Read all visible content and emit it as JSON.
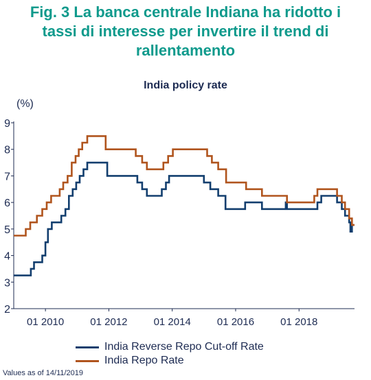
{
  "figure": {
    "title_lines": [
      "Fig. 3 La banca centrale Indiana ha ridotto i",
      "tassi di interesse per invertire il trend di",
      "rallentamento"
    ],
    "footnote": "Values as of 14/11/2019"
  },
  "colors": {
    "title": "#0f9a8c",
    "text": "#1d2b52",
    "series1": "#123e6e",
    "series2": "#b0541d",
    "axis": "#1d2b52"
  },
  "chart_data": {
    "type": "line",
    "title": "India policy rate",
    "ylabel": "(%)",
    "xlabel": "",
    "ylim": [
      2,
      9
    ],
    "yticks": [
      2,
      3,
      4,
      5,
      6,
      7,
      8,
      9
    ],
    "xlim": [
      2009.0,
      2019.75
    ],
    "xticks": [
      {
        "x": 2010.0,
        "label": "01 2010"
      },
      {
        "x": 2012.0,
        "label": "01 2012"
      },
      {
        "x": 2014.0,
        "label": "01 2014"
      },
      {
        "x": 2016.0,
        "label": "01 2016"
      },
      {
        "x": 2018.0,
        "label": "01 2018"
      }
    ],
    "grid": false,
    "legend_position": "bottom",
    "series": [
      {
        "name": "India Reverse Repo Cut-off Rate",
        "step": true,
        "points": [
          [
            2009.0,
            3.25
          ],
          [
            2009.54,
            3.5
          ],
          [
            2009.64,
            3.75
          ],
          [
            2009.9,
            4.0
          ],
          [
            2010.0,
            4.5
          ],
          [
            2010.08,
            5.0
          ],
          [
            2010.2,
            5.25
          ],
          [
            2010.5,
            5.5
          ],
          [
            2010.63,
            5.75
          ],
          [
            2010.74,
            6.25
          ],
          [
            2010.86,
            6.5
          ],
          [
            2010.97,
            6.75
          ],
          [
            2011.08,
            7.0
          ],
          [
            2011.2,
            7.25
          ],
          [
            2011.32,
            7.5
          ],
          [
            2011.9,
            7.5
          ],
          [
            2011.95,
            7.0
          ],
          [
            2012.8,
            7.0
          ],
          [
            2012.9,
            6.75
          ],
          [
            2013.05,
            6.5
          ],
          [
            2013.2,
            6.25
          ],
          [
            2013.57,
            6.25
          ],
          [
            2013.67,
            6.5
          ],
          [
            2013.8,
            6.75
          ],
          [
            2013.9,
            7.0
          ],
          [
            2014.9,
            7.0
          ],
          [
            2015.0,
            6.75
          ],
          [
            2015.2,
            6.5
          ],
          [
            2015.45,
            6.25
          ],
          [
            2015.68,
            5.75
          ],
          [
            2016.25,
            5.75
          ],
          [
            2016.3,
            6.0
          ],
          [
            2016.78,
            6.0
          ],
          [
            2016.83,
            5.75
          ],
          [
            2017.3,
            5.75
          ],
          [
            2017.58,
            6.0
          ],
          [
            2017.62,
            5.75
          ],
          [
            2018.5,
            5.75
          ],
          [
            2018.58,
            6.0
          ],
          [
            2018.7,
            6.25
          ],
          [
            2019.1,
            6.25
          ],
          [
            2019.2,
            6.0
          ],
          [
            2019.35,
            5.75
          ],
          [
            2019.45,
            5.5
          ],
          [
            2019.58,
            5.25
          ],
          [
            2019.62,
            4.9
          ],
          [
            2019.67,
            5.15
          ],
          [
            2019.75,
            5.15
          ]
        ]
      },
      {
        "name": "India Repo Rate",
        "step": true,
        "points": [
          [
            2009.0,
            4.75
          ],
          [
            2009.38,
            5.0
          ],
          [
            2009.52,
            5.25
          ],
          [
            2009.73,
            5.5
          ],
          [
            2009.9,
            5.75
          ],
          [
            2010.04,
            6.0
          ],
          [
            2010.18,
            6.25
          ],
          [
            2010.45,
            6.5
          ],
          [
            2010.56,
            6.75
          ],
          [
            2010.7,
            7.0
          ],
          [
            2010.83,
            7.5
          ],
          [
            2010.95,
            7.75
          ],
          [
            2011.05,
            8.0
          ],
          [
            2011.16,
            8.25
          ],
          [
            2011.32,
            8.5
          ],
          [
            2011.87,
            8.5
          ],
          [
            2011.9,
            8.0
          ],
          [
            2012.75,
            8.0
          ],
          [
            2012.85,
            7.75
          ],
          [
            2013.05,
            7.5
          ],
          [
            2013.2,
            7.25
          ],
          [
            2013.6,
            7.25
          ],
          [
            2013.72,
            7.5
          ],
          [
            2013.87,
            7.75
          ],
          [
            2014.02,
            8.0
          ],
          [
            2014.98,
            8.0
          ],
          [
            2015.1,
            7.75
          ],
          [
            2015.25,
            7.5
          ],
          [
            2015.45,
            7.25
          ],
          [
            2015.7,
            6.75
          ],
          [
            2016.28,
            6.75
          ],
          [
            2016.33,
            6.5
          ],
          [
            2016.78,
            6.5
          ],
          [
            2016.83,
            6.25
          ],
          [
            2017.58,
            6.25
          ],
          [
            2017.62,
            6.0
          ],
          [
            2018.42,
            6.0
          ],
          [
            2018.48,
            6.25
          ],
          [
            2018.58,
            6.5
          ],
          [
            2019.1,
            6.5
          ],
          [
            2019.2,
            6.25
          ],
          [
            2019.35,
            6.0
          ],
          [
            2019.45,
            5.75
          ],
          [
            2019.58,
            5.4
          ],
          [
            2019.67,
            5.15
          ],
          [
            2019.75,
            5.15
          ]
        ]
      }
    ]
  }
}
